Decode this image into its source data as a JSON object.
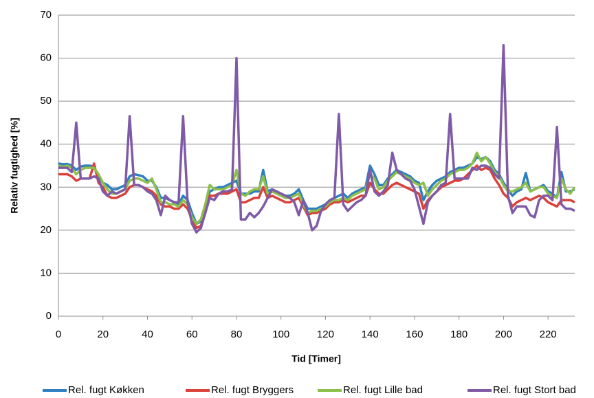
{
  "chart_data": {
    "type": "line",
    "x_label": "Tid [Timer]",
    "y_label": "Relativ fugtighed [%]",
    "xlim": [
      0,
      232
    ],
    "ylim": [
      0,
      70
    ],
    "xticks": [
      0,
      20,
      40,
      60,
      80,
      100,
      120,
      140,
      160,
      180,
      200,
      220
    ],
    "yticks": [
      0,
      10,
      20,
      30,
      40,
      50,
      60,
      70
    ],
    "grid": true,
    "legend": "bottom",
    "x": [
      0,
      2,
      4,
      6,
      8,
      10,
      12,
      14,
      16,
      18,
      20,
      22,
      24,
      26,
      28,
      30,
      32,
      34,
      36,
      38,
      40,
      42,
      44,
      46,
      48,
      50,
      52,
      54,
      56,
      58,
      60,
      62,
      64,
      66,
      68,
      70,
      72,
      74,
      76,
      78,
      80,
      82,
      84,
      86,
      88,
      90,
      92,
      94,
      96,
      98,
      100,
      102,
      104,
      106,
      108,
      110,
      112,
      114,
      116,
      118,
      120,
      122,
      124,
      126,
      128,
      130,
      132,
      134,
      136,
      138,
      140,
      142,
      144,
      146,
      148,
      150,
      152,
      154,
      156,
      158,
      160,
      162,
      164,
      166,
      168,
      170,
      172,
      174,
      176,
      178,
      180,
      182,
      184,
      186,
      188,
      190,
      192,
      194,
      196,
      198,
      200,
      202,
      204,
      206,
      208,
      210,
      212,
      214,
      216,
      218,
      220,
      222,
      224,
      226,
      228,
      230,
      232
    ],
    "series": [
      {
        "name": "Rel. fugt Køkken",
        "color": "#2e7fc0",
        "values": [
          35.5,
          35.3,
          35.4,
          35,
          34,
          34.8,
          35,
          35,
          34.8,
          32.5,
          31,
          30.5,
          29.5,
          29.5,
          30,
          30.5,
          32.5,
          33,
          32.8,
          32.5,
          31.5,
          31.5,
          30,
          27.5,
          27.5,
          27,
          26.5,
          26,
          28,
          27,
          24,
          21.5,
          22,
          25,
          29,
          29.5,
          30,
          30,
          30.5,
          31,
          31.5,
          28.5,
          28.5,
          28.5,
          29,
          29,
          34,
          29,
          29.5,
          29,
          28.5,
          28,
          28,
          28.5,
          29.5,
          27,
          25,
          25,
          25,
          25.5,
          26,
          27,
          27.5,
          28,
          28.5,
          27.5,
          28.5,
          29,
          29.5,
          30,
          35,
          33,
          30.5,
          30.5,
          32,
          33,
          34,
          33.5,
          33,
          32.5,
          31.5,
          31,
          27,
          29,
          30.5,
          31.5,
          32,
          32.5,
          33.5,
          34,
          34.5,
          34.5,
          35,
          35.5,
          37,
          36.5,
          37,
          36,
          34,
          33,
          31,
          29.5,
          28,
          29,
          29.5,
          33.3,
          29,
          29.5,
          30,
          30.5,
          29,
          28.5,
          27.5,
          33.5,
          29,
          29,
          29.5
        ]
      },
      {
        "name": "Rel. fugt Bryggers",
        "color": "#d9413a",
        "values": [
          33,
          33,
          33,
          32.5,
          31.5,
          32,
          32,
          32,
          35.5,
          31,
          30,
          28,
          27.5,
          27.5,
          28,
          28.5,
          30,
          30.5,
          30.5,
          30,
          29.5,
          29,
          28,
          26,
          25.5,
          25.5,
          25,
          25,
          26,
          25,
          22.5,
          20.5,
          21,
          24,
          28,
          28,
          28.5,
          28.5,
          28.5,
          29,
          29.5,
          26.5,
          26.5,
          27,
          27.5,
          27.5,
          30,
          27.5,
          28,
          27.5,
          27,
          26.5,
          26.5,
          27,
          27.5,
          25.5,
          23.5,
          24,
          24,
          24.5,
          25,
          26,
          26.5,
          26.5,
          27,
          26.5,
          27,
          27.5,
          28,
          28,
          31,
          29.5,
          28.5,
          28.5,
          29.5,
          30.5,
          31,
          30.5,
          30,
          29.5,
          29,
          28.5,
          25,
          27,
          28,
          29,
          30,
          30.5,
          31,
          31.5,
          31.5,
          32,
          33,
          34,
          35,
          34,
          34.5,
          34,
          32,
          30.5,
          28.5,
          27.5,
          25.5,
          26.5,
          27,
          27.5,
          27,
          27.5,
          28,
          27.5,
          26.5,
          26,
          25.5,
          27,
          27,
          27,
          26.5
        ]
      },
      {
        "name": "Rel. fugt Lille bad",
        "color": "#8cc04a",
        "values": [
          35,
          34.8,
          35,
          34.5,
          33,
          34,
          34.5,
          34.5,
          34.5,
          33,
          31,
          29.5,
          28.5,
          28.5,
          29,
          29.5,
          31.5,
          32,
          32,
          31.5,
          31,
          32,
          29.5,
          26.5,
          26.5,
          26,
          26,
          25.5,
          27,
          26,
          23,
          21.5,
          22.5,
          26,
          30.5,
          29.5,
          29.5,
          29.5,
          30,
          30.5,
          34,
          28.5,
          28,
          29,
          29.5,
          29.5,
          32.5,
          28.5,
          29,
          28.5,
          28,
          27.5,
          27.5,
          28,
          28.5,
          26,
          24,
          24.5,
          24.5,
          25,
          25.5,
          26.5,
          27,
          27,
          27.5,
          27,
          28,
          28.5,
          29,
          29.5,
          33,
          32,
          29.5,
          30,
          31.5,
          32.5,
          33.5,
          33,
          32.5,
          32,
          31,
          30.5,
          31,
          28,
          29.5,
          30.5,
          31.5,
          32,
          33,
          33.5,
          34,
          34,
          34.5,
          35.5,
          38,
          36,
          37,
          35.5,
          33.5,
          32.5,
          30.5,
          29,
          29,
          29.5,
          30,
          31,
          29,
          29.5,
          30,
          30,
          28.5,
          28,
          27.5,
          32,
          29.5,
          28.5,
          30
        ]
      },
      {
        "name": "Rel. fugt Stort bad",
        "color": "#7f5aa6",
        "values": [
          34.5,
          34.5,
          34.5,
          33.5,
          45,
          32,
          32,
          32,
          32.5,
          32,
          29,
          28,
          29,
          28.5,
          29,
          29.5,
          46.5,
          30.5,
          30.5,
          30,
          29,
          28.5,
          27,
          23.5,
          28,
          27,
          26.5,
          26.5,
          46.5,
          26.5,
          21.5,
          19.5,
          20.5,
          24,
          27.5,
          27,
          28.5,
          29,
          29,
          29.5,
          60,
          22.5,
          22.5,
          24,
          23,
          24,
          25.5,
          27.5,
          29.5,
          29,
          28.5,
          28,
          27.5,
          26.5,
          23.5,
          27,
          24,
          20,
          21,
          24.5,
          26,
          27,
          27.5,
          47,
          26,
          24.5,
          25.5,
          26.5,
          27,
          28,
          34,
          29,
          28,
          29,
          30.5,
          38,
          34,
          33,
          32,
          31.5,
          29.5,
          25.5,
          21.5,
          26.5,
          28,
          29,
          30.5,
          31,
          47,
          32,
          32,
          32,
          32,
          34.5,
          34,
          35,
          35,
          34.5,
          33,
          32,
          63,
          28,
          24,
          25.5,
          25.5,
          25.5,
          23.5,
          23,
          27,
          28,
          28,
          27,
          44,
          26,
          25,
          25,
          24.5
        ]
      }
    ]
  }
}
